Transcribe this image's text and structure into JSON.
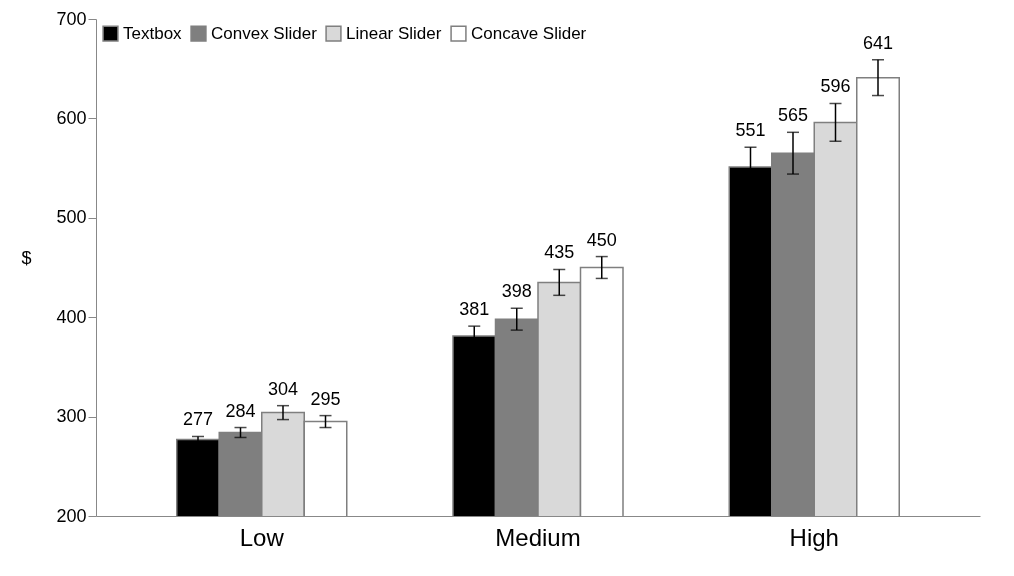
{
  "chart_data": {
    "type": "bar",
    "ylabel": "$",
    "categories": [
      "Low",
      "Medium",
      "High"
    ],
    "series": [
      {
        "name": "Textbox",
        "color": "#000000",
        "values": [
          277,
          381,
          551
        ],
        "errors": [
          3,
          10,
          20
        ]
      },
      {
        "name": "Convex Slider",
        "color": "#7f7f7f",
        "values": [
          284,
          398,
          565
        ],
        "errors": [
          5,
          11,
          21
        ]
      },
      {
        "name": "Linear Slider",
        "color": "#d9d9d9",
        "values": [
          304,
          435,
          596
        ],
        "errors": [
          7,
          13,
          19
        ]
      },
      {
        "name": "Concave Slider",
        "color": "#ffffff",
        "values": [
          295,
          450,
          641
        ],
        "errors": [
          6,
          11,
          18
        ]
      }
    ],
    "ylim": [
      200,
      700
    ],
    "yticks": [
      200,
      300,
      400,
      500,
      600,
      700
    ],
    "data_labels": true,
    "grid": false,
    "legend": "top left"
  }
}
